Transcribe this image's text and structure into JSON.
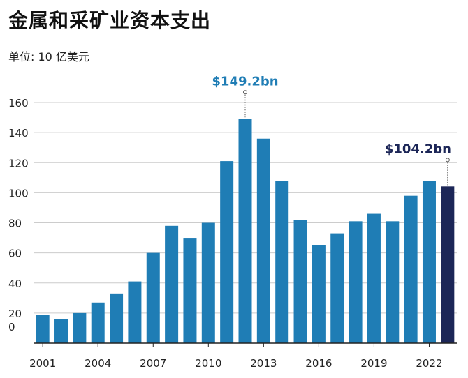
{
  "title": "金属和采矿业资本支出",
  "subtitle": "单位: 10 亿美元",
  "chart_data": {
    "type": "bar",
    "title": "金属和采矿业资本支出",
    "subtitle": "单位: 10 亿美元",
    "categories": [
      "2001",
      "2002",
      "2003",
      "2004",
      "2005",
      "2006",
      "2007",
      "2008",
      "2009",
      "2010",
      "2011",
      "2012",
      "2013",
      "2014",
      "2015",
      "2016",
      "2017",
      "2018",
      "2019",
      "2020",
      "2021",
      "2022",
      "2023"
    ],
    "values": [
      19,
      16,
      20,
      27,
      33,
      41,
      60,
      78,
      70,
      80,
      121,
      149.2,
      136,
      108,
      82,
      65,
      73,
      81,
      86,
      81,
      98,
      108,
      104.2
    ],
    "highlight_index": 22,
    "colors": {
      "bar": "#1f7db5",
      "highlight": "#1c2657",
      "annotation_peak": "#1f7db5",
      "annotation_last": "#1c2657",
      "grid": "#cccccc",
      "axis": "#222222"
    },
    "yticks": [
      0,
      20,
      40,
      60,
      80,
      100,
      120,
      140,
      160
    ],
    "xtick_labels": [
      "2001",
      "2004",
      "2007",
      "2010",
      "2013",
      "2016",
      "2019",
      "2022"
    ],
    "ylim": [
      0,
      160
    ],
    "grid": true,
    "annotations": [
      {
        "index": 11,
        "text": "$149.2bn",
        "color_key": "annotation_peak"
      },
      {
        "index": 22,
        "text": "$104.2bn",
        "color_key": "annotation_last"
      }
    ]
  }
}
